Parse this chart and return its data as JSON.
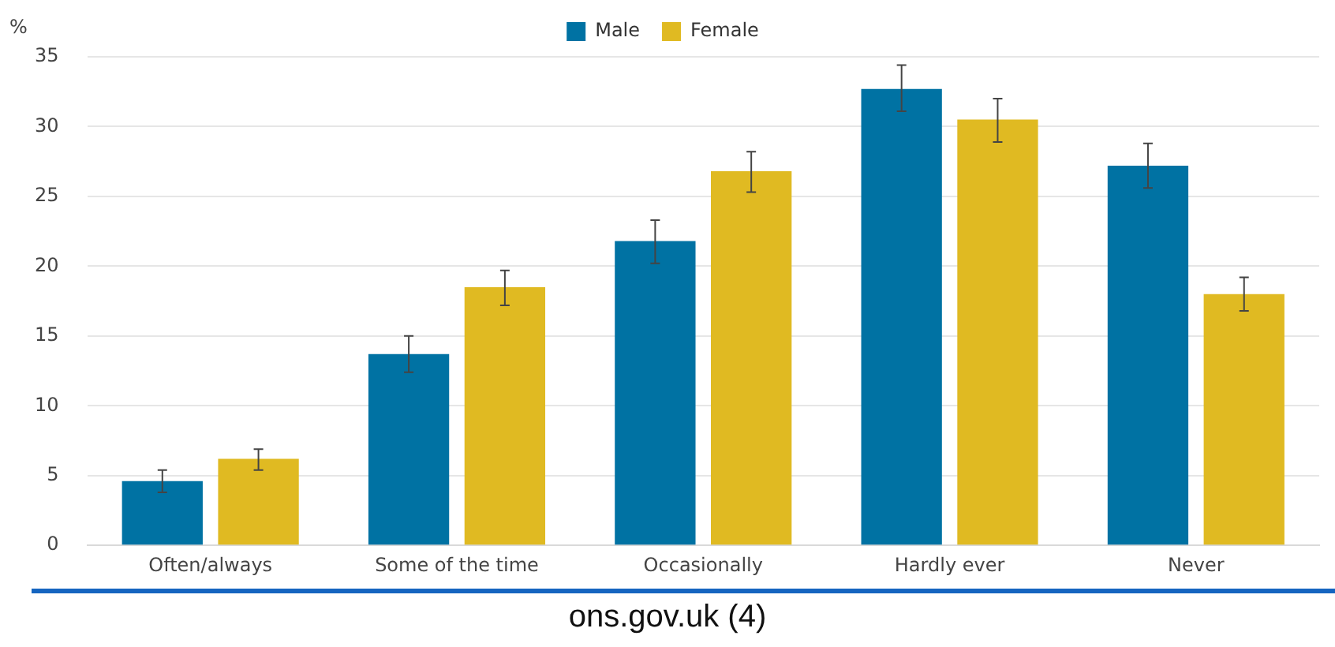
{
  "chart_data": {
    "type": "bar",
    "ylabel": "%",
    "categories": [
      "Often/always",
      "Some of the time",
      "Occasionally",
      "Hardly ever",
      "Never"
    ],
    "series": [
      {
        "name": "Male",
        "color": "#0072a3",
        "values": [
          4.6,
          13.7,
          21.8,
          32.7,
          27.2
        ],
        "errors": [
          [
            3.8,
            5.4
          ],
          [
            12.4,
            15.0
          ],
          [
            20.2,
            23.3
          ],
          [
            31.1,
            34.4
          ],
          [
            25.6,
            28.8
          ]
        ]
      },
      {
        "name": "Female",
        "color": "#e0ba22",
        "values": [
          6.2,
          18.5,
          26.8,
          30.5,
          18.0
        ],
        "errors": [
          [
            5.4,
            6.9
          ],
          [
            17.2,
            19.7
          ],
          [
            25.3,
            28.2
          ],
          [
            28.9,
            32.0
          ],
          [
            16.8,
            19.2
          ]
        ]
      }
    ],
    "ylim": [
      0,
      35
    ],
    "yticks": [
      0,
      5,
      10,
      15,
      20,
      25,
      30,
      35
    ],
    "grid": "y",
    "legend": "top",
    "annotations": [
      "ons.gov.uk (4)"
    ]
  }
}
